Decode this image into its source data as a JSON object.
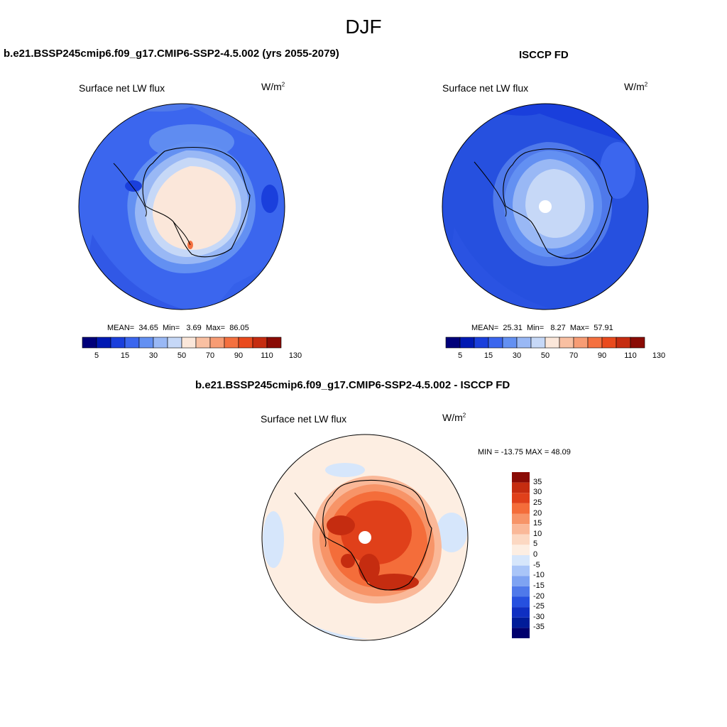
{
  "page": {
    "title": "DJF"
  },
  "panels": {
    "model": {
      "title": "b.e21.BSSP245cmip6.f09_g17.CMIP6-SSP2-4.5.002 (yrs 2055-2079)",
      "variable": "Surface net LW flux",
      "units_base": "W/m",
      "units_exp": "2",
      "stats": {
        "mean_label": "MEAN=",
        "mean": "34.65",
        "min_label": "Min=",
        "min": "3.69",
        "max_label": "Max=",
        "max": "86.05"
      }
    },
    "obs": {
      "title": "ISCCP FD",
      "variable": "Surface net LW flux",
      "units_base": "W/m",
      "units_exp": "2",
      "stats": {
        "mean_label": "MEAN=",
        "mean": "25.31",
        "min_label": "Min=",
        "min": "8.27",
        "max_label": "Max=",
        "max": "57.91"
      }
    },
    "diff": {
      "title": "b.e21.BSSP245cmip6.f09_g17.CMIP6-SSP2-4.5.002 - ISCCP FD",
      "variable": "Surface net LW flux",
      "units_base": "W/m",
      "units_exp": "2",
      "minmax": "MIN = -13.75 MAX =  48.09"
    }
  },
  "colorbars": {
    "absolute": {
      "colors": [
        "#00007a",
        "#0019b3",
        "#1a3fdc",
        "#3b66ee",
        "#6390f2",
        "#99b8f5",
        "#c6d8f7",
        "#fbe7da",
        "#f9c0a2",
        "#f79c74",
        "#f4703f",
        "#e94a1d",
        "#c52c10",
        "#8a0b05"
      ],
      "labels": [
        "5",
        "15",
        "30",
        "50",
        "70",
        "90",
        "110",
        "130"
      ]
    },
    "difference": {
      "colors": [
        "#8a0b05",
        "#c52c10",
        "#e0401a",
        "#f46d3a",
        "#f79468",
        "#fab898",
        "#fcd8c2",
        "#fdeee2",
        "#d6e6fb",
        "#a9c5f8",
        "#7ea3f2",
        "#4f79ea",
        "#2650df",
        "#0f2fc2",
        "#001c99",
        "#00006e"
      ],
      "labels": [
        "35",
        "30",
        "25",
        "20",
        "15",
        "10",
        "5",
        "0",
        "-5",
        "-10",
        "-15",
        "-20",
        "-25",
        "-30",
        "-35"
      ]
    }
  },
  "chart_data": [
    {
      "type": "heatmap",
      "title": "b.e21.BSSP245cmip6.f09_g17.CMIP6-SSP2-4.5.002 (yrs 2055-2079)",
      "projection": "south polar stereographic",
      "variable": "Surface net LW flux",
      "units": "W/m2",
      "levels": [
        5,
        10,
        15,
        20,
        30,
        40,
        50,
        60,
        70,
        80,
        90,
        100,
        110,
        120,
        130
      ],
      "mean": 34.65,
      "min": 3.69,
      "max": 86.05
    },
    {
      "type": "heatmap",
      "title": "ISCCP FD",
      "projection": "south polar stereographic",
      "variable": "Surface net LW flux",
      "units": "W/m2",
      "levels": [
        5,
        10,
        15,
        20,
        30,
        40,
        50,
        60,
        70,
        80,
        90,
        100,
        110,
        120,
        130
      ],
      "mean": 25.31,
      "min": 8.27,
      "max": 57.91
    },
    {
      "type": "heatmap",
      "title": "b.e21.BSSP245cmip6.f09_g17.CMIP6-SSP2-4.5.002 - ISCCP FD",
      "projection": "south polar stereographic",
      "variable": "Surface net LW flux",
      "units": "W/m2",
      "levels": [
        -35,
        -30,
        -25,
        -20,
        -15,
        -10,
        -5,
        0,
        5,
        10,
        15,
        20,
        25,
        30,
        35
      ],
      "min": -13.75,
      "max": 48.09
    }
  ]
}
